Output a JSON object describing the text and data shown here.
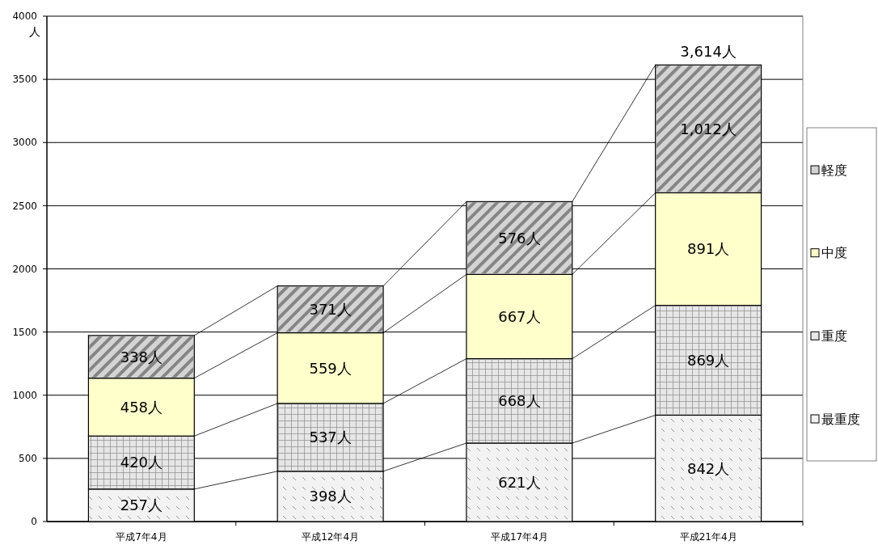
{
  "chart_data": {
    "type": "bar",
    "stacked": true,
    "ylabel": "人",
    "categories": [
      "平成7年4月",
      "平成12年4月",
      "平成17年4月",
      "平成21年4月"
    ],
    "series": [
      {
        "name": "最重度",
        "color": "#f2f2f2",
        "values": [
          257,
          398,
          621,
          842
        ],
        "value_labels": [
          "257人",
          "398人",
          "621人",
          "842人"
        ]
      },
      {
        "name": "重度",
        "color": "#e6e6e6",
        "values": [
          420,
          537,
          668,
          869
        ],
        "value_labels": [
          "420人",
          "537人",
          "668人",
          "869人"
        ]
      },
      {
        "name": "中度",
        "color": "#ffffcc",
        "values": [
          458,
          559,
          667,
          891
        ],
        "value_labels": [
          "458人",
          "559人",
          "667人",
          "891人"
        ]
      },
      {
        "name": "軽度",
        "color": "#d4d4d4",
        "values": [
          338,
          371,
          576,
          1012
        ],
        "value_labels": [
          "338人",
          "371人",
          "576人",
          "1,012人"
        ]
      }
    ],
    "totals": [
      null,
      null,
      null,
      "3,614人"
    ],
    "ylim": [
      0,
      4000
    ],
    "yticks": [
      0,
      500,
      1000,
      1500,
      2000,
      2500,
      3000,
      3500,
      4000
    ],
    "grid": "y",
    "legend": "right"
  }
}
